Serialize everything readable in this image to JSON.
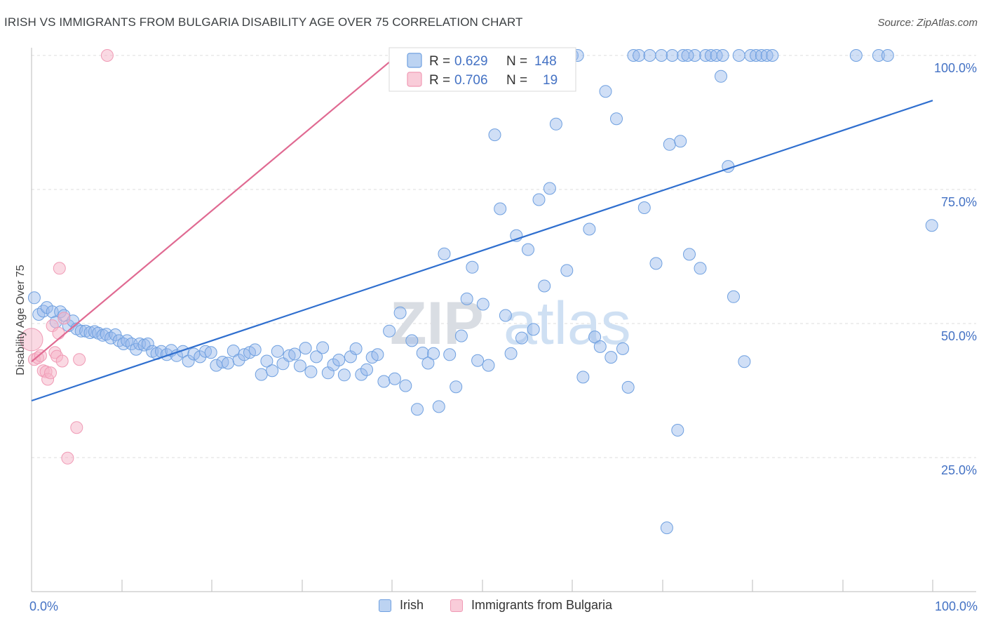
{
  "title": "IRISH VS IMMIGRANTS FROM BULGARIA DISABILITY AGE OVER 75 CORRELATION CHART",
  "source": "Source: ZipAtlas.com",
  "watermark": {
    "bold": "ZIP",
    "light": "atlas"
  },
  "legend": {
    "r_label": "R =",
    "n_label": "N =",
    "entries": [
      {
        "r": "0.629",
        "n": "148"
      },
      {
        "r": "0.706",
        "n": "19"
      }
    ]
  },
  "chart_data": {
    "type": "scatter",
    "xlabel": "",
    "ylabel": "Disability Age Over 75",
    "xlim": [
      0,
      100
    ],
    "ylim": [
      0,
      105
    ],
    "x_tick_labels": [
      "0.0%",
      "100.0%"
    ],
    "y_ticks": [
      {
        "value": 25,
        "label": "25.0%"
      },
      {
        "value": 50,
        "label": "50.0%"
      },
      {
        "value": 75,
        "label": "75.0%"
      },
      {
        "value": 100,
        "label": "100.0%"
      }
    ],
    "grid": "horizontal-dashed",
    "legend_position": "top-center",
    "colors": {
      "irish": "#6fa0e0",
      "irish_line": "#2f6fcf",
      "bulgaria": "#f4a7bf",
      "bulgaria_line": "#e06a92"
    },
    "series": [
      {
        "name": "Irish",
        "trend": {
          "x": [
            0,
            100
          ],
          "y": [
            35.6,
            91.6
          ]
        },
        "points": [
          [
            0.3,
            54.8
          ],
          [
            0.8,
            51.7
          ],
          [
            1.3,
            52.3
          ],
          [
            1.7,
            53.0
          ],
          [
            2.3,
            52.2
          ],
          [
            2.7,
            50.3
          ],
          [
            3.2,
            52.2
          ],
          [
            3.6,
            51.5
          ],
          [
            4.1,
            49.6
          ],
          [
            4.6,
            50.5
          ],
          [
            5.0,
            49.0
          ],
          [
            5.5,
            48.6
          ],
          [
            6.0,
            48.6
          ],
          [
            6.5,
            48.3
          ],
          [
            7.0,
            48.5
          ],
          [
            7.4,
            48.2
          ],
          [
            7.9,
            47.8
          ],
          [
            8.3,
            48.0
          ],
          [
            8.8,
            47.3
          ],
          [
            9.3,
            47.9
          ],
          [
            9.7,
            46.8
          ],
          [
            10.2,
            46.2
          ],
          [
            10.6,
            46.8
          ],
          [
            11.1,
            46.2
          ],
          [
            11.6,
            45.2
          ],
          [
            12.0,
            46.2
          ],
          [
            12.5,
            46.0
          ],
          [
            12.9,
            46.2
          ],
          [
            13.4,
            44.8
          ],
          [
            13.9,
            44.4
          ],
          [
            14.4,
            44.8
          ],
          [
            15.0,
            44.2
          ],
          [
            15.5,
            45.0
          ],
          [
            16.1,
            44.0
          ],
          [
            16.8,
            44.8
          ],
          [
            17.4,
            43.0
          ],
          [
            18.0,
            44.3
          ],
          [
            18.7,
            43.8
          ],
          [
            19.3,
            44.8
          ],
          [
            19.9,
            44.6
          ],
          [
            20.5,
            42.2
          ],
          [
            21.2,
            42.8
          ],
          [
            21.8,
            42.6
          ],
          [
            22.4,
            44.9
          ],
          [
            23.0,
            43.2
          ],
          [
            23.6,
            44.2
          ],
          [
            24.2,
            44.6
          ],
          [
            24.8,
            45.1
          ],
          [
            25.5,
            40.5
          ],
          [
            26.1,
            43.0
          ],
          [
            26.7,
            41.2
          ],
          [
            27.3,
            44.8
          ],
          [
            27.9,
            42.5
          ],
          [
            28.6,
            44.0
          ],
          [
            29.2,
            44.3
          ],
          [
            29.8,
            42.1
          ],
          [
            30.4,
            45.4
          ],
          [
            31.0,
            41.0
          ],
          [
            31.6,
            43.8
          ],
          [
            32.3,
            45.5
          ],
          [
            32.9,
            40.8
          ],
          [
            33.5,
            42.3
          ],
          [
            34.1,
            43.2
          ],
          [
            34.7,
            40.4
          ],
          [
            35.4,
            43.8
          ],
          [
            36.0,
            45.3
          ],
          [
            36.6,
            40.5
          ],
          [
            37.2,
            41.4
          ],
          [
            37.8,
            43.7
          ],
          [
            38.4,
            44.2
          ],
          [
            39.1,
            39.2
          ],
          [
            39.7,
            48.6
          ],
          [
            40.3,
            39.7
          ],
          [
            40.9,
            52.0
          ],
          [
            41.5,
            38.4
          ],
          [
            42.2,
            46.8
          ],
          [
            42.8,
            34.0
          ],
          [
            43.4,
            44.5
          ],
          [
            44.0,
            42.6
          ],
          [
            44.6,
            44.4
          ],
          [
            45.2,
            34.5
          ],
          [
            45.8,
            63.0
          ],
          [
            46.4,
            44.2
          ],
          [
            47.1,
            38.2
          ],
          [
            47.7,
            47.7
          ],
          [
            48.3,
            54.6
          ],
          [
            48.9,
            60.5
          ],
          [
            49.5,
            43.1
          ],
          [
            50.1,
            53.6
          ],
          [
            50.7,
            42.2
          ],
          [
            51.4,
            85.2
          ],
          [
            52.0,
            71.4
          ],
          [
            52.6,
            51.5
          ],
          [
            53.2,
            44.4
          ],
          [
            53.8,
            66.4
          ],
          [
            54.4,
            47.3
          ],
          [
            55.1,
            63.8
          ],
          [
            55.7,
            48.9
          ],
          [
            56.3,
            73.1
          ],
          [
            56.9,
            57.0
          ],
          [
            57.5,
            75.2
          ],
          [
            58.2,
            87.2
          ],
          [
            58.8,
            100.0
          ],
          [
            59.4,
            59.9
          ],
          [
            60.0,
            100.0
          ],
          [
            60.6,
            100.0
          ],
          [
            61.2,
            40.0
          ],
          [
            61.9,
            67.6
          ],
          [
            62.5,
            47.5
          ],
          [
            63.1,
            45.7
          ],
          [
            63.7,
            93.3
          ],
          [
            64.3,
            43.7
          ],
          [
            64.9,
            88.2
          ],
          [
            65.6,
            45.3
          ],
          [
            66.2,
            38.1
          ],
          [
            66.8,
            100.0
          ],
          [
            67.4,
            100.0
          ],
          [
            68.0,
            71.6
          ],
          [
            68.6,
            100.0
          ],
          [
            69.3,
            61.2
          ],
          [
            69.9,
            100.0
          ],
          [
            70.5,
            11.9
          ],
          [
            71.1,
            100.0
          ],
          [
            71.7,
            30.1
          ],
          [
            72.3,
            100.0
          ],
          [
            73.0,
            62.9
          ],
          [
            73.6,
            100.0
          ],
          [
            74.2,
            60.3
          ],
          [
            74.8,
            100.0
          ],
          [
            75.4,
            100.0
          ],
          [
            76.0,
            100.0
          ],
          [
            76.7,
            100.0
          ],
          [
            77.3,
            79.3
          ],
          [
            77.9,
            55.0
          ],
          [
            78.5,
            100.0
          ],
          [
            79.1,
            42.9
          ],
          [
            79.8,
            100.0
          ],
          [
            80.4,
            100.0
          ],
          [
            81.0,
            100.0
          ],
          [
            81.6,
            100.0
          ],
          [
            82.2,
            100.0
          ],
          [
            94.0,
            100.0
          ],
          [
            95.0,
            100.0
          ],
          [
            99.9,
            68.3
          ],
          [
            70.8,
            83.4
          ],
          [
            72.0,
            84.0
          ],
          [
            76.5,
            96.1
          ],
          [
            72.8,
            100.0
          ],
          [
            91.5,
            100.0
          ]
        ]
      },
      {
        "name": "Immigrants from Bulgaria",
        "trend": {
          "x": [
            0,
            40.3
          ],
          "y": [
            42.9,
            99.6
          ]
        },
        "points": [
          [
            0.0,
            47.0
          ],
          [
            0.3,
            43.3
          ],
          [
            0.7,
            43.6
          ],
          [
            1.0,
            44.0
          ],
          [
            1.3,
            41.2
          ],
          [
            1.6,
            41.0
          ],
          [
            1.8,
            39.6
          ],
          [
            2.1,
            40.8
          ],
          [
            2.3,
            49.6
          ],
          [
            2.6,
            44.6
          ],
          [
            2.8,
            43.9
          ],
          [
            3.0,
            48.2
          ],
          [
            3.1,
            60.3
          ],
          [
            3.4,
            43.0
          ],
          [
            3.6,
            51.0
          ],
          [
            4.0,
            24.9
          ],
          [
            5.0,
            30.6
          ],
          [
            5.3,
            43.3
          ],
          [
            8.4,
            100.0
          ]
        ]
      }
    ]
  }
}
